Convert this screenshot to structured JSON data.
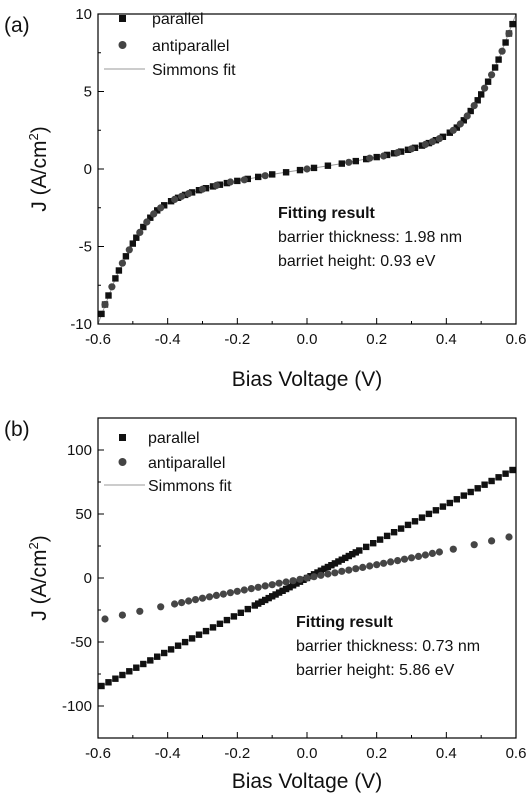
{
  "chart_data": [
    {
      "panel": "(a)",
      "type": "scatter",
      "xlabel": "Bias Voltage (V)",
      "ylabel_main": "J (A/cm",
      "ylabel_sup": "2",
      "ylabel_close": ")",
      "xlim": [
        -0.6,
        0.6
      ],
      "ylim": [
        -10,
        10
      ],
      "xticks": [
        -0.6,
        -0.4,
        -0.2,
        0.0,
        0.2,
        0.4,
        0.6
      ],
      "xtick_labels": [
        "-0.6",
        "-0.4",
        "-0.2",
        "0.0",
        "0.2",
        "0.4",
        "0.6"
      ],
      "yticks": [
        -10,
        -5,
        0,
        5,
        10
      ],
      "ytick_labels": [
        "-10",
        "-5",
        "0",
        "5",
        "10"
      ],
      "legend_position": "top-left",
      "legend": [
        "parallel",
        "antiparallel",
        "Simmons fit"
      ],
      "annotation": {
        "title": "Fitting result",
        "line1": "barrier thickness: 1.98 nm",
        "line2": "barriet height: 0.93 eV"
      },
      "series": [
        {
          "name": "parallel",
          "marker": "square",
          "x": [
            -0.59,
            -0.58,
            -0.57,
            -0.55,
            -0.54,
            -0.52,
            -0.5,
            -0.49,
            -0.47,
            -0.45,
            -0.43,
            -0.41,
            -0.39,
            -0.37,
            -0.35,
            -0.33,
            -0.31,
            -0.29,
            -0.27,
            -0.25,
            -0.23,
            -0.2,
            -0.17,
            -0.14,
            -0.1,
            -0.06,
            -0.02,
            0.02,
            0.06,
            0.1,
            0.14,
            0.17,
            0.2,
            0.23,
            0.25,
            0.27,
            0.29,
            0.31,
            0.33,
            0.35,
            0.37,
            0.39,
            0.41,
            0.43,
            0.45,
            0.47,
            0.49,
            0.5,
            0.52,
            0.54,
            0.55,
            0.57,
            0.58,
            0.59
          ],
          "y": [
            -9.35,
            -8.74,
            -8.16,
            -7.06,
            -6.55,
            -5.63,
            -4.81,
            -4.43,
            -3.74,
            -3.14,
            -2.67,
            -2.34,
            -2.08,
            -1.86,
            -1.67,
            -1.51,
            -1.37,
            -1.24,
            -1.12,
            -1.01,
            -0.91,
            -0.77,
            -0.64,
            -0.51,
            -0.35,
            -0.21,
            -0.07,
            0.07,
            0.21,
            0.35,
            0.51,
            0.64,
            0.77,
            0.91,
            1.01,
            1.12,
            1.24,
            1.37,
            1.51,
            1.67,
            1.86,
            2.08,
            2.34,
            2.67,
            3.14,
            3.74,
            4.43,
            4.81,
            5.63,
            6.55,
            7.06,
            8.16,
            8.74,
            9.35
          ]
        },
        {
          "name": "antiparallel",
          "marker": "circle",
          "x": [
            -0.58,
            -0.56,
            -0.53,
            -0.51,
            -0.48,
            -0.46,
            -0.44,
            -0.42,
            -0.38,
            -0.36,
            -0.34,
            -0.3,
            -0.26,
            -0.22,
            -0.18,
            -0.12,
            0.0,
            0.12,
            0.18,
            0.22,
            0.26,
            0.3,
            0.34,
            0.36,
            0.38,
            0.42,
            0.44,
            0.46,
            0.48,
            0.51,
            0.53,
            0.56,
            0.58
          ],
          "y": [
            -8.74,
            -7.6,
            -6.08,
            -5.21,
            -4.09,
            -3.42,
            -2.9,
            -2.5,
            -1.96,
            -1.76,
            -1.59,
            -1.3,
            -1.06,
            -0.84,
            -0.7,
            -0.43,
            0.0,
            0.43,
            0.7,
            0.84,
            1.06,
            1.3,
            1.59,
            1.76,
            1.96,
            2.5,
            2.9,
            3.42,
            4.09,
            5.21,
            6.08,
            7.6,
            8.74
          ]
        },
        {
          "name": "Simmons fit",
          "marker": "line",
          "x": [
            -0.6,
            -0.55,
            -0.5,
            -0.45,
            -0.4,
            -0.35,
            -0.3,
            -0.25,
            -0.2,
            -0.15,
            -0.1,
            -0.05,
            0.0,
            0.05,
            0.1,
            0.15,
            0.2,
            0.25,
            0.3,
            0.35,
            0.4,
            0.45,
            0.5,
            0.55,
            0.6
          ],
          "y": [
            -10.0,
            -7.06,
            -4.81,
            -3.14,
            -2.2,
            -1.67,
            -1.3,
            -1.01,
            -0.77,
            -0.57,
            -0.35,
            -0.17,
            0.0,
            0.17,
            0.35,
            0.57,
            0.77,
            1.01,
            1.3,
            1.67,
            2.2,
            3.14,
            4.81,
            7.06,
            10.0
          ]
        }
      ]
    },
    {
      "panel": "(b)",
      "type": "scatter",
      "xlabel": "Bias Voltage (V)",
      "ylabel_main": "J (A/cm",
      "ylabel_sup": "2",
      "ylabel_close": ")",
      "xlim": [
        -0.6,
        0.6
      ],
      "ylim": [
        -125,
        125
      ],
      "xticks": [
        -0.6,
        -0.4,
        -0.2,
        0.0,
        0.2,
        0.4,
        0.6
      ],
      "xtick_labels": [
        "-0.6",
        "-0.4",
        "-0.2",
        "0.0",
        "0.2",
        "0.4",
        "0.6"
      ],
      "yticks": [
        -100,
        -50,
        0,
        50,
        100
      ],
      "ytick_labels": [
        "-100",
        "-50",
        "0",
        "50",
        "100"
      ],
      "legend_position": "top-left",
      "legend": [
        "parallel",
        "antiparallel",
        "Simmons fit"
      ],
      "annotation": {
        "title": "Fitting result",
        "line1": "barrier thickness: 0.73 nm",
        "line2": "barrier height: 5.86 eV"
      },
      "series": [
        {
          "name": "parallel",
          "marker": "square",
          "x": [
            -0.59,
            -0.57,
            -0.55,
            -0.53,
            -0.51,
            -0.49,
            -0.47,
            -0.45,
            -0.43,
            -0.41,
            -0.39,
            -0.37,
            -0.35,
            -0.33,
            -0.31,
            -0.29,
            -0.27,
            -0.25,
            -0.23,
            -0.21,
            -0.19,
            -0.17,
            -0.15,
            -0.14,
            -0.13,
            -0.12,
            -0.11,
            -0.1,
            -0.09,
            -0.08,
            -0.07,
            -0.06,
            -0.05,
            -0.04,
            -0.03,
            -0.02,
            -0.01,
            0.0,
            0.01,
            0.02,
            0.03,
            0.04,
            0.05,
            0.06,
            0.07,
            0.08,
            0.09,
            0.1,
            0.11,
            0.12,
            0.13,
            0.14,
            0.15,
            0.17,
            0.19,
            0.21,
            0.23,
            0.25,
            0.27,
            0.29,
            0.31,
            0.33,
            0.35,
            0.37,
            0.39,
            0.41,
            0.43,
            0.45,
            0.47,
            0.49,
            0.51,
            0.53,
            0.55,
            0.57,
            0.59
          ],
          "y": [
            -84.4,
            -81.5,
            -78.7,
            -75.8,
            -72.9,
            -70.1,
            -67.2,
            -64.4,
            -61.5,
            -58.6,
            -55.8,
            -52.9,
            -50.1,
            -47.2,
            -44.3,
            -41.5,
            -38.6,
            -35.8,
            -32.9,
            -30.0,
            -27.2,
            -24.3,
            -21.5,
            -20.0,
            -18.6,
            -17.2,
            -15.7,
            -14.3,
            -12.9,
            -11.4,
            -10.0,
            -8.6,
            -7.2,
            -5.7,
            -4.3,
            -2.9,
            -1.4,
            0.0,
            1.4,
            2.9,
            4.3,
            5.7,
            7.2,
            8.6,
            10.0,
            11.4,
            12.9,
            14.3,
            15.7,
            17.2,
            18.6,
            20.0,
            21.5,
            24.3,
            27.2,
            30.0,
            32.9,
            35.8,
            38.6,
            41.5,
            44.3,
            47.2,
            50.1,
            52.9,
            55.8,
            58.6,
            61.5,
            64.4,
            67.2,
            70.1,
            72.9,
            75.8,
            78.7,
            81.5,
            84.4
          ]
        },
        {
          "name": "antiparallel",
          "marker": "circle",
          "x": [
            -0.58,
            -0.53,
            -0.48,
            -0.42,
            -0.38,
            -0.36,
            -0.34,
            -0.32,
            -0.3,
            -0.28,
            -0.26,
            -0.24,
            -0.22,
            -0.2,
            -0.18,
            -0.16,
            -0.14,
            -0.12,
            -0.1,
            -0.08,
            -0.06,
            -0.04,
            -0.02,
            0.0,
            0.02,
            0.04,
            0.06,
            0.08,
            0.1,
            0.12,
            0.14,
            0.16,
            0.18,
            0.2,
            0.22,
            0.24,
            0.26,
            0.28,
            0.3,
            0.32,
            0.34,
            0.36,
            0.38,
            0.42,
            0.48,
            0.53,
            0.58
          ],
          "y": [
            -32.0,
            -29.0,
            -26.0,
            -22.5,
            -20.3,
            -19.2,
            -18.0,
            -16.9,
            -15.8,
            -14.7,
            -13.6,
            -12.6,
            -11.5,
            -10.4,
            -9.4,
            -8.3,
            -7.3,
            -6.2,
            -5.2,
            -4.1,
            -3.1,
            -2.1,
            -1.0,
            0.0,
            1.0,
            2.1,
            3.1,
            4.1,
            5.2,
            6.2,
            7.3,
            8.3,
            9.4,
            10.4,
            11.5,
            12.6,
            13.6,
            14.7,
            15.8,
            16.9,
            18.0,
            19.2,
            20.3,
            22.5,
            26.0,
            29.0,
            32.0
          ]
        },
        {
          "name": "Simmons fit",
          "marker": "line",
          "x": [
            -0.6,
            0.6
          ],
          "y": [
            -86.0,
            86.0
          ]
        }
      ]
    }
  ]
}
